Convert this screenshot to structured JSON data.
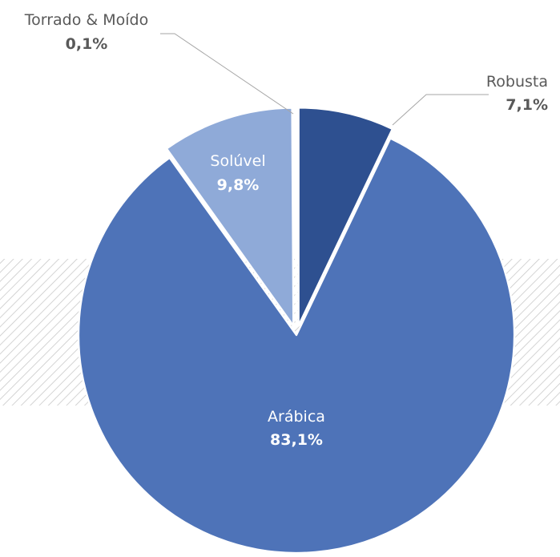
{
  "chart_data": {
    "type": "pie",
    "title": "",
    "slices": [
      {
        "label": "Robusta",
        "value": 7.1,
        "display": "7,1%",
        "color": "#2e5090"
      },
      {
        "label": "Arábica",
        "value": 83.1,
        "display": "83,1%",
        "color": "#4e73b8"
      },
      {
        "label": "Solúvel",
        "value": 9.8,
        "display": "9,8%",
        "color": "#8faad8"
      },
      {
        "label": "Torrado & Moído",
        "value": 0.1,
        "display": "0,1%",
        "color": "#1b3560"
      }
    ],
    "label_text_color_outside": "#595959",
    "label_text_color_inside": "#ffffff",
    "legend": "none"
  }
}
